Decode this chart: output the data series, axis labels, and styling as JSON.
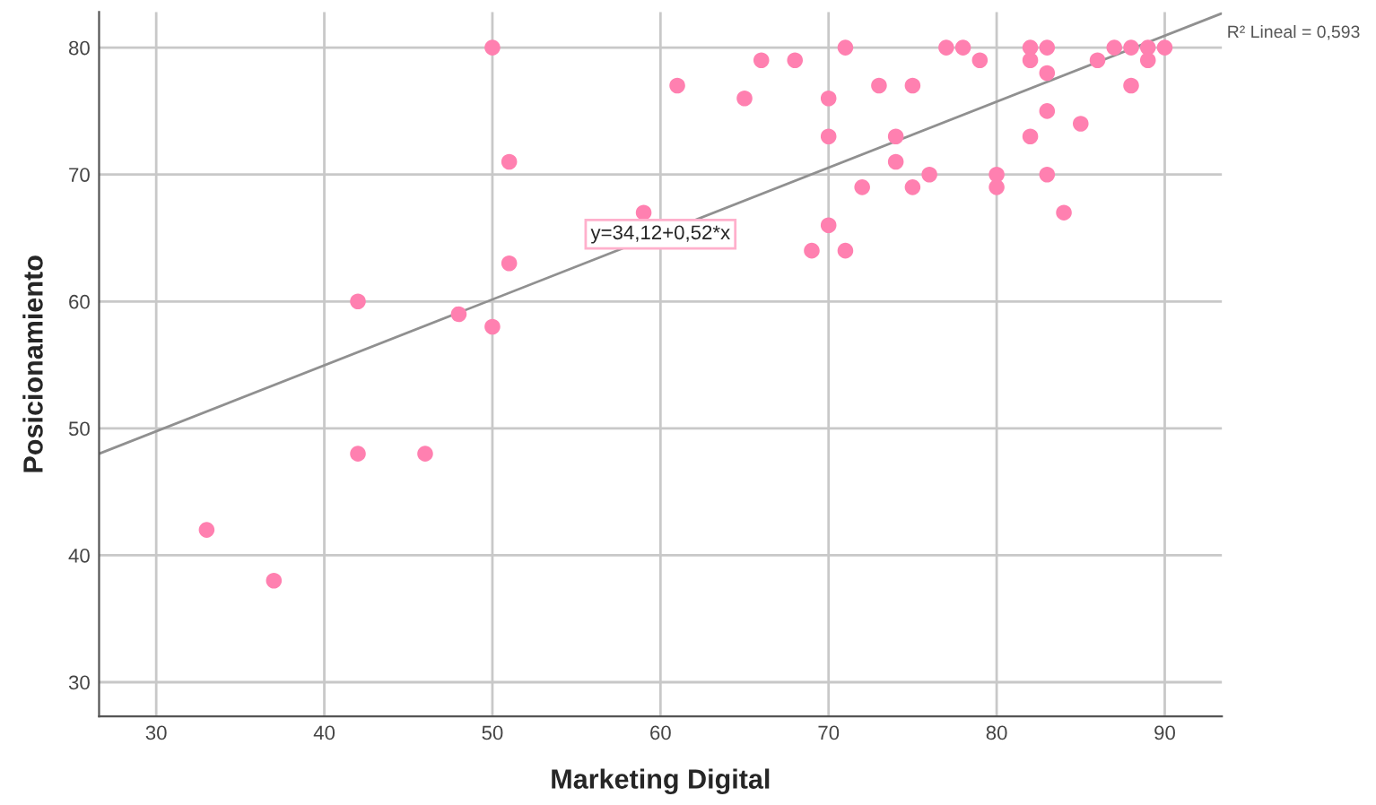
{
  "chart_data": {
    "type": "scatter",
    "xlabel": "Marketing Digital",
    "ylabel": "Posicionamiento",
    "xlim": [
      26.6,
      93.4
    ],
    "ylim": [
      27.3,
      82.8
    ],
    "xticks": [
      30,
      40,
      50,
      60,
      70,
      80,
      90
    ],
    "yticks": [
      30,
      40,
      50,
      60,
      70,
      80
    ],
    "grid": true,
    "legend": false,
    "series": [
      {
        "marker": "circle",
        "color": "#ff80b0",
        "x": [
          33,
          37,
          42,
          42,
          46,
          48,
          50,
          50,
          51,
          51,
          59,
          61,
          65,
          66,
          68,
          69,
          70,
          70,
          70,
          71,
          71,
          72,
          73,
          74,
          74,
          75,
          75,
          76,
          77,
          78,
          79,
          80,
          80,
          82,
          82,
          82,
          83,
          83,
          83,
          83,
          84,
          85,
          86,
          87,
          88,
          88,
          89,
          89,
          90
        ],
        "values": [
          42,
          38,
          60,
          48,
          48,
          59,
          80,
          58,
          71,
          63,
          67,
          77,
          76,
          79,
          79,
          64,
          76,
          73,
          66,
          80,
          64,
          69,
          77,
          73,
          71,
          77,
          69,
          70,
          80,
          80,
          79,
          70,
          69,
          80,
          79,
          73,
          80,
          78,
          75,
          70,
          67,
          74,
          79,
          80,
          80,
          77,
          80,
          79,
          80
        ]
      },
      {
        "type": "line",
        "marker": "none",
        "color": "#909090",
        "x": [
          26.6,
          93.4
        ],
        "values": [
          48.0,
          82.7
        ]
      }
    ],
    "annotations": [
      {
        "text": "y=34,12+0,52*x",
        "x": 60,
        "y": 65.3
      },
      "R² Lineal = 0,593"
    ]
  }
}
